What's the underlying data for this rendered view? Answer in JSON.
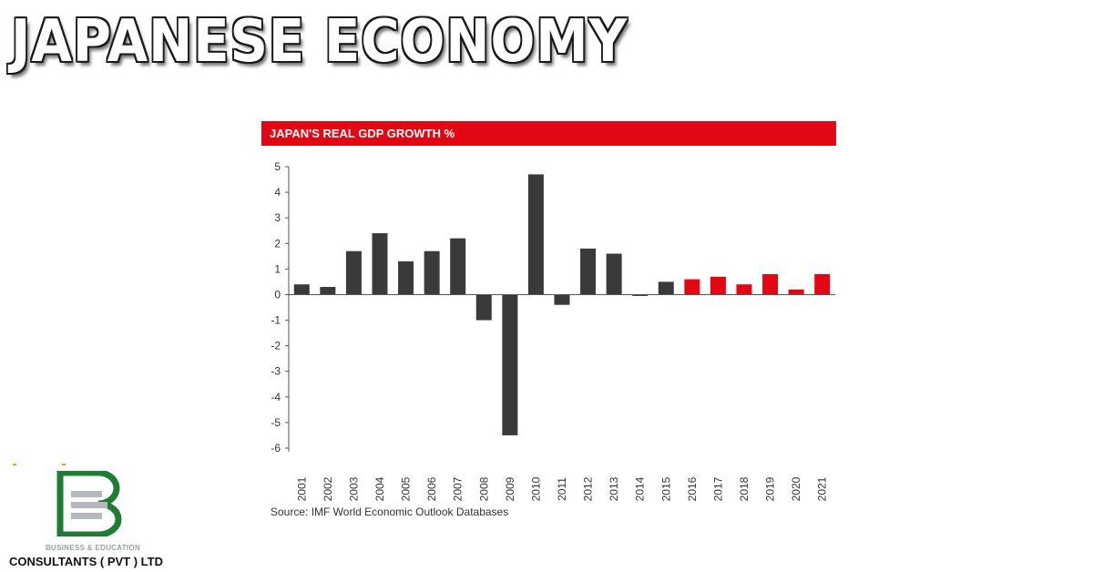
{
  "headline": "JAPANESE ECONOMY",
  "brand": {
    "tagline": "BUSINESS & EDUCATION",
    "name": "CONSULTANTS ( PVT ) LTD"
  },
  "colors": {
    "banner": "#e30613",
    "bar_dark": "#3a3a3a",
    "bar_red": "#e30613",
    "logo_green": "#1e7d32",
    "logo_gray": "#b5b9bd"
  },
  "chart_data": {
    "type": "bar",
    "title": "JAPAN'S REAL GDP GROWTH %",
    "source": "Source: IMF World Economic Outlook Databases",
    "xlabel": "",
    "ylabel": "",
    "ylim": [
      -6,
      5
    ],
    "yticks": [
      "5",
      "4",
      "3",
      "2",
      "1",
      "0",
      "-1",
      "-2",
      "-3",
      "-4",
      "-5",
      "-6"
    ],
    "grid": false,
    "categories": [
      "2001",
      "2002",
      "2003",
      "2004",
      "2005",
      "2006",
      "2007",
      "2008",
      "2009",
      "2010",
      "2011",
      "2012",
      "2013",
      "2014",
      "2015",
      "2016",
      "2017",
      "2018",
      "2019",
      "2020",
      "2021"
    ],
    "values": [
      0.4,
      0.3,
      1.7,
      2.4,
      1.3,
      1.7,
      2.2,
      -1.0,
      -5.5,
      4.7,
      -0.4,
      1.8,
      1.6,
      -0.05,
      0.5,
      0.6,
      0.7,
      0.4,
      0.8,
      0.2,
      0.8
    ],
    "highlight_from": "2016"
  }
}
